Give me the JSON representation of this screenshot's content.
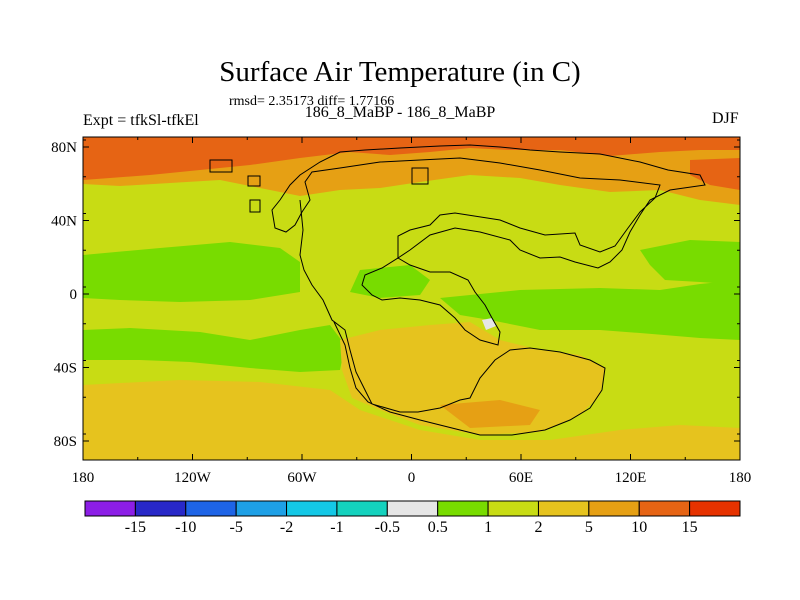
{
  "title": "Surface Air Temperature (in C)",
  "stats": "rmsd= 2.35173 diff= 1.77166",
  "subtitle": "186_8_MaBP - 186_8_MaBP",
  "experiment": "Expt = tfkSl-tfkEl",
  "season": "DJF",
  "axes": {
    "y_labels": [
      "80N",
      "40N",
      "0",
      "40S",
      "80S"
    ],
    "x_labels": [
      "180",
      "120W",
      "60W",
      "0",
      "60E",
      "120E",
      "180"
    ]
  },
  "colorbar": {
    "colors": [
      "#8c1ee6",
      "#2828c8",
      "#1e64e6",
      "#1ea0e6",
      "#14c8e6",
      "#14d2be",
      "#e6e6e6",
      "#78dc00",
      "#c8dc14",
      "#e6c31e",
      "#e6a014",
      "#e66414",
      "#e63200"
    ],
    "labels": [
      "-15",
      "-10",
      "-5",
      "-2",
      "-1",
      "-0.5",
      "0.5",
      "1",
      "2",
      "5",
      "10",
      "15"
    ]
  },
  "field_colors": {
    "one_to_two": "#c8dc14",
    "zero_five_to_one": "#78dc00",
    "two_to_five": "#e6c31e",
    "five_to_ten": "#e6a014",
    "ten_to_fifteen": "#e66414",
    "small": "#e6e6e6"
  }
}
